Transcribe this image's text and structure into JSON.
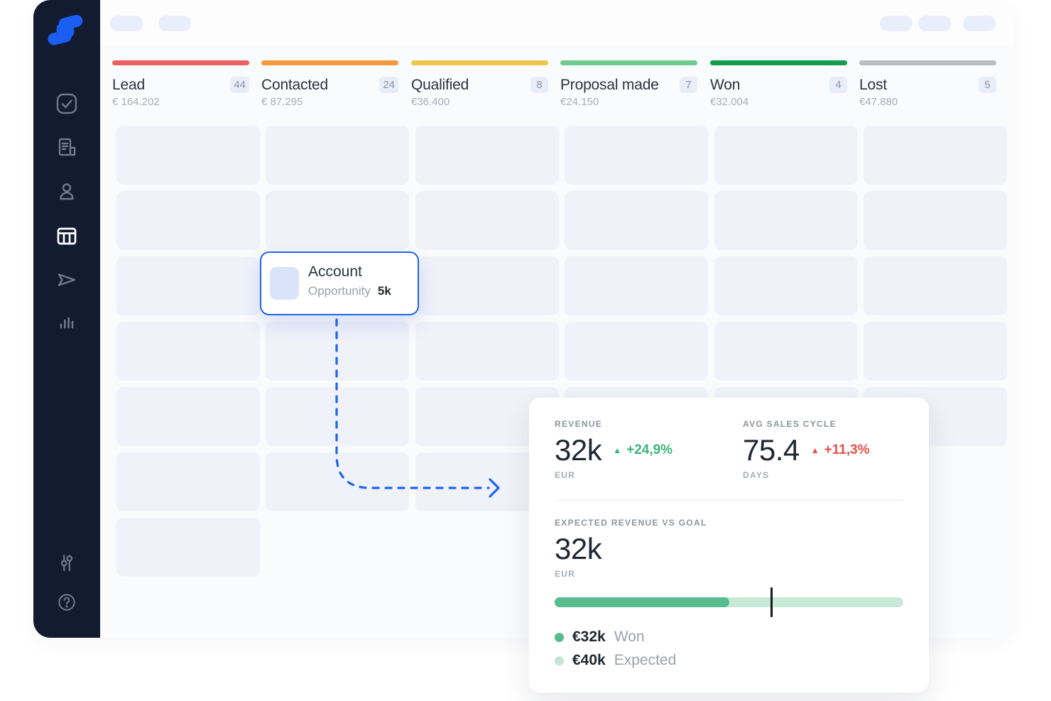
{
  "colors": {
    "accent_blue": "#1e63f0",
    "logo_blue": "#1b5ef2",
    "sidebar_bg": "#121b30",
    "positive_green": "#3cb47e",
    "negative_red": "#e8504a",
    "progress_fill": "#57bd8e",
    "progress_track": "#c8e9d8",
    "marker_black": "#15181d",
    "highlight_border": "#2365ec"
  },
  "sidebar": {
    "items": [
      {
        "name": "tasks",
        "icon": "check-square-icon",
        "active": false
      },
      {
        "name": "accounts",
        "icon": "company-icon",
        "active": false
      },
      {
        "name": "contacts",
        "icon": "person-icon",
        "active": false
      },
      {
        "name": "opportunities",
        "icon": "kanban-board-icon",
        "active": true
      },
      {
        "name": "campaigns",
        "icon": "send-icon",
        "active": false
      },
      {
        "name": "insights",
        "icon": "bar-chart-icon",
        "active": false
      }
    ],
    "footer_items": [
      {
        "name": "settings",
        "icon": "sliders-icon"
      },
      {
        "name": "help",
        "icon": "help-circle-icon"
      }
    ]
  },
  "topbar": {
    "left_pills": 2,
    "right_pills": 3
  },
  "pipeline": {
    "columns": [
      {
        "label": "Lead",
        "count": "44",
        "amount": "€ 164.202",
        "bar_color": "#ec5f62",
        "cards": [
          "placeholder",
          "placeholder",
          "placeholder",
          "placeholder",
          "placeholder",
          "placeholder",
          "placeholder"
        ]
      },
      {
        "label": "Contacted",
        "count": "24",
        "amount": "€ 87.295",
        "bar_color": "#f6993e",
        "cards": [
          "placeholder",
          "placeholder",
          "highlight_slot",
          "placeholder",
          "placeholder",
          "placeholder"
        ]
      },
      {
        "label": "Qualified",
        "count": "8",
        "amount": "€36.400",
        "bar_color": "#eec64a",
        "cards": [
          "placeholder",
          "placeholder",
          "placeholder",
          "placeholder",
          "placeholder",
          "placeholder"
        ]
      },
      {
        "label": "Proposal made",
        "count": "7",
        "amount": "€24.150",
        "bar_color": "#6fca8f",
        "cards": [
          "placeholder",
          "placeholder",
          "placeholder",
          "placeholder",
          "placeholder"
        ]
      },
      {
        "label": "Won",
        "count": "4",
        "amount": "€32.004",
        "bar_color": "#129e4d",
        "cards": [
          "placeholder",
          "placeholder",
          "placeholder",
          "placeholder",
          "placeholder"
        ]
      },
      {
        "label": "Lost",
        "count": "5",
        "amount": "€47.880",
        "bar_color": "#bbbcbe",
        "cards": [
          "placeholder",
          "placeholder",
          "placeholder",
          "placeholder",
          "placeholder"
        ]
      }
    ]
  },
  "highlight_card": {
    "title": "Account",
    "subtitle": "Opportunity",
    "value": "5k"
  },
  "stats_panel": {
    "revenue": {
      "label": "REVENUE",
      "value": "32k",
      "unit": "EUR",
      "delta": "+24,9%",
      "delta_direction": "up",
      "delta_color": "#3cb47e"
    },
    "sales_cycle": {
      "label": "AVG SALES CYCLE",
      "value": "75.4",
      "unit": "DAYS",
      "delta": "+11,3%",
      "delta_direction": "up",
      "delta_color": "#e8504a"
    },
    "goal": {
      "label": "EXPECTED REVENUE VS GOAL",
      "value": "32k",
      "unit": "EUR",
      "progress_pct": 50,
      "marker_pct": 62,
      "legend": [
        {
          "value": "€32k",
          "label": "Won",
          "color": "#57bd8e"
        },
        {
          "value": "€40k",
          "label": "Expected",
          "color": "#c3e7d4"
        }
      ]
    }
  }
}
